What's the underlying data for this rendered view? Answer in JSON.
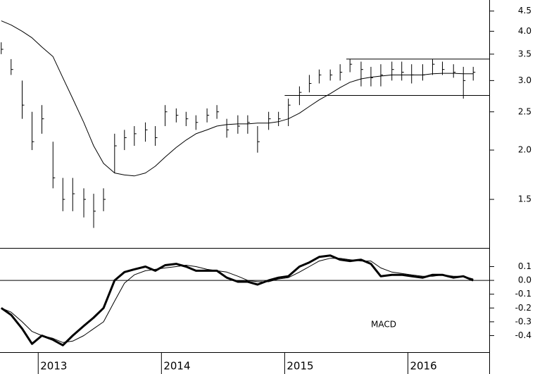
{
  "chart_data": [
    {
      "type": "ohlc",
      "log": true,
      "color": "#000000",
      "xlim": [
        2012.69,
        2016.66
      ],
      "ylim": [
        1.13,
        4.8
      ],
      "yticks": [
        4.5,
        {
          "value": 4,
          "label": "4.0"
        },
        3.5,
        {
          "value": 3,
          "label": "3.0"
        },
        2.5,
        {
          "value": 2,
          "label": "2.0"
        },
        1.5
      ],
      "x": [
        2012.7,
        2012.78,
        2012.87,
        2012.95,
        2013.03,
        2013.12,
        2013.2,
        2013.28,
        2013.37,
        2013.45,
        2013.53,
        2013.62,
        2013.7,
        2013.78,
        2013.87,
        2013.95,
        2014.03,
        2014.12,
        2014.2,
        2014.28,
        2014.37,
        2014.45,
        2014.53,
        2014.62,
        2014.7,
        2014.78,
        2014.87,
        2014.95,
        2015.03,
        2015.12,
        2015.2,
        2015.28,
        2015.37,
        2015.45,
        2015.53,
        2015.62,
        2015.7,
        2015.78,
        2015.87,
        2015.95,
        2016.03,
        2016.12,
        2016.2,
        2016.28,
        2016.37,
        2016.45,
        2016.53
      ],
      "series": [
        {
          "type": "ohlc",
          "color": "#000000",
          "high": [
            3.75,
            3.4,
            3.0,
            2.5,
            2.6,
            2.1,
            1.7,
            1.7,
            1.6,
            1.55,
            1.6,
            2.2,
            2.25,
            2.3,
            2.35,
            2.3,
            2.6,
            2.55,
            2.5,
            2.45,
            2.55,
            2.6,
            2.4,
            2.45,
            2.45,
            2.3,
            2.5,
            2.5,
            2.7,
            2.9,
            3.1,
            3.2,
            3.2,
            3.3,
            3.4,
            3.35,
            3.25,
            3.3,
            3.35,
            3.35,
            3.3,
            3.3,
            3.4,
            3.35,
            3.3,
            3.25,
            3.25
          ],
          "low": [
            3.5,
            3.1,
            2.4,
            2.0,
            2.2,
            1.6,
            1.4,
            1.4,
            1.35,
            1.27,
            1.4,
            1.75,
            2.0,
            2.05,
            2.1,
            2.05,
            2.3,
            2.35,
            2.3,
            2.25,
            2.35,
            2.4,
            2.15,
            2.2,
            2.2,
            1.97,
            2.25,
            2.3,
            2.3,
            2.6,
            2.8,
            2.95,
            3.0,
            3.0,
            3.15,
            2.9,
            2.9,
            2.9,
            3.0,
            3.0,
            2.95,
            3.0,
            3.1,
            3.1,
            3.05,
            2.7,
            3.0
          ],
          "close": [
            3.6,
            3.2,
            2.6,
            2.1,
            2.4,
            1.7,
            1.5,
            1.55,
            1.5,
            1.4,
            1.5,
            2.05,
            2.15,
            2.2,
            2.25,
            2.15,
            2.5,
            2.45,
            2.4,
            2.35,
            2.45,
            2.5,
            2.25,
            2.3,
            2.35,
            2.1,
            2.4,
            2.4,
            2.6,
            2.8,
            2.95,
            3.1,
            3.1,
            3.15,
            3.3,
            3.2,
            3.05,
            3.1,
            3.2,
            3.15,
            3.1,
            3.1,
            3.3,
            3.2,
            3.15,
            3.0,
            3.15
          ]
        },
        {
          "type": "line",
          "color": "#000000",
          "values": [
            4.25,
            4.15,
            4.0,
            3.85,
            3.65,
            3.45,
            3.05,
            2.7,
            2.35,
            2.05,
            1.85,
            1.75,
            1.73,
            1.72,
            1.75,
            1.82,
            1.92,
            2.03,
            2.12,
            2.2,
            2.25,
            2.3,
            2.32,
            2.33,
            2.33,
            2.34,
            2.34,
            2.36,
            2.4,
            2.48,
            2.58,
            2.68,
            2.78,
            2.88,
            2.97,
            3.03,
            3.06,
            3.08,
            3.1,
            3.1,
            3.1,
            3.1,
            3.12,
            3.13,
            3.13,
            3.12,
            3.12
          ]
        }
      ],
      "levels": [
        {
          "value": 3.4,
          "x": [
            2015.5,
            2016.66
          ]
        },
        {
          "value": 2.75,
          "x": [
            2015.0,
            2016.66
          ]
        }
      ]
    },
    {
      "type": "line",
      "annotation": "MACD",
      "xlim": [
        2012.69,
        2016.66
      ],
      "ylim": [
        -0.52,
        0.23
      ],
      "xticks": [
        2013,
        2014,
        2015,
        2016
      ],
      "yticks": [
        0.1,
        {
          "value": 0,
          "label": "0.0"
        },
        -0.1,
        -0.2,
        -0.3,
        -0.4
      ],
      "zero_line": true,
      "x": [
        2012.7,
        2012.78,
        2012.87,
        2012.95,
        2013.03,
        2013.12,
        2013.2,
        2013.28,
        2013.37,
        2013.45,
        2013.53,
        2013.62,
        2013.7,
        2013.78,
        2013.87,
        2013.95,
        2014.03,
        2014.12,
        2014.2,
        2014.28,
        2014.37,
        2014.45,
        2014.53,
        2014.62,
        2014.7,
        2014.78,
        2014.87,
        2014.95,
        2015.03,
        2015.12,
        2015.2,
        2015.28,
        2015.37,
        2015.45,
        2015.53,
        2015.62,
        2015.7,
        2015.78,
        2015.87,
        2015.95,
        2016.03,
        2016.12,
        2016.2,
        2016.28,
        2016.37,
        2016.45,
        2016.53
      ],
      "series": [
        {
          "color": "#000000",
          "width": 3,
          "values": [
            -0.2,
            -0.25,
            -0.35,
            -0.46,
            -0.4,
            -0.43,
            -0.47,
            -0.4,
            -0.33,
            -0.27,
            -0.2,
            0.0,
            0.06,
            0.08,
            0.1,
            0.07,
            0.11,
            0.12,
            0.1,
            0.07,
            0.07,
            0.07,
            0.02,
            -0.01,
            -0.01,
            -0.03,
            0.0,
            0.02,
            0.03,
            0.1,
            0.13,
            0.17,
            0.18,
            0.15,
            0.14,
            0.15,
            0.12,
            0.03,
            0.04,
            0.04,
            0.03,
            0.02,
            0.04,
            0.04,
            0.02,
            0.03,
            0.0
          ]
        },
        {
          "color": "#000000",
          "width": 1,
          "values": [
            -0.2,
            -0.23,
            -0.3,
            -0.37,
            -0.4,
            -0.42,
            -0.45,
            -0.44,
            -0.4,
            -0.35,
            -0.3,
            -0.15,
            -0.02,
            0.04,
            0.07,
            0.08,
            0.09,
            0.1,
            0.11,
            0.1,
            0.08,
            0.07,
            0.06,
            0.03,
            0.0,
            -0.01,
            -0.01,
            0.01,
            0.02,
            0.06,
            0.1,
            0.14,
            0.16,
            0.16,
            0.15,
            0.14,
            0.14,
            0.09,
            0.06,
            0.05,
            0.04,
            0.03,
            0.03,
            0.04,
            0.03,
            0.03,
            0.01
          ]
        }
      ]
    }
  ]
}
